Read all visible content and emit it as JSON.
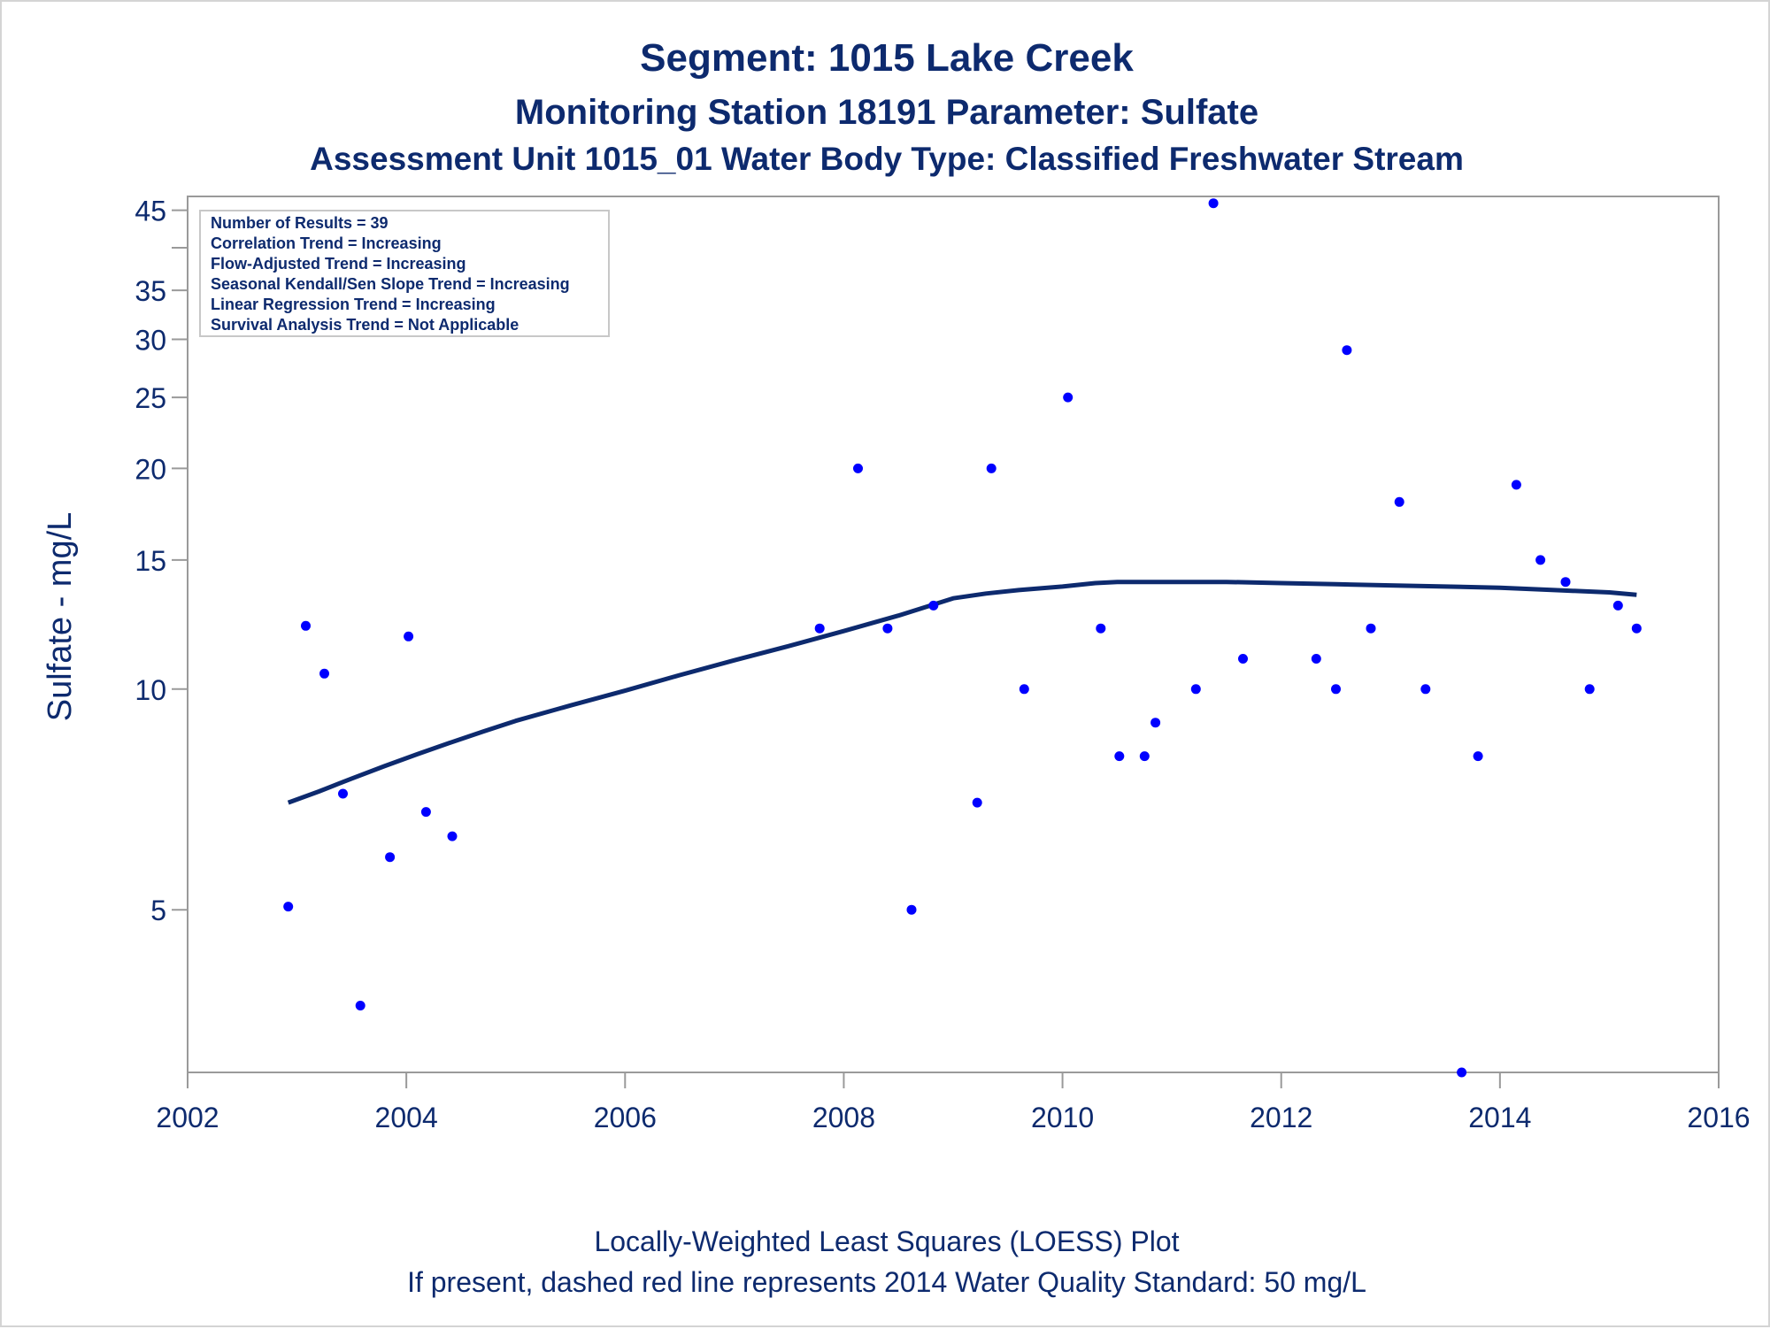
{
  "titles": {
    "line1": "Segment: 1015  Lake Creek",
    "line2": "Monitoring Station 18191 Parameter: Sulfate",
    "line3": "Assessment Unit 1015_01   Water Body Type: Classified Freshwater Stream"
  },
  "footnotes": {
    "line1": "Locally-Weighted Least Squares (LOESS) Plot",
    "line2": "If present, dashed red line represents 2014 Water Quality Standard: 50    mg/L"
  },
  "legend": [
    "Number of Results = 39",
    "Correlation Trend = Increasing",
    "Flow-Adjusted Trend = Increasing",
    "Seasonal Kendall/Sen Slope Trend = Increasing",
    "Linear Regression Trend = Increasing",
    "Survival Analysis Trend = Not Applicable"
  ],
  "colors": {
    "text": "#0d2a6e",
    "points": "#0000ff",
    "loess": "#0d2a6e",
    "axis": "#9a9a9a"
  },
  "chart_data": {
    "type": "scatter",
    "ylabel": "Sulfate - mg/L",
    "xlabel": "",
    "xlim": [
      2002,
      2016
    ],
    "ylim": [
      3.0,
      47
    ],
    "yscale": "log",
    "x_ticks": [
      2002,
      2004,
      2006,
      2008,
      2010,
      2012,
      2014,
      2016
    ],
    "y_ticks": [
      5,
      10,
      15,
      20,
      25,
      30,
      35,
      45
    ],
    "y_minor_ticks": [
      40
    ],
    "grid": false,
    "legend_position": "top-left",
    "series": [
      {
        "kind": "points",
        "x": [
          2002.92,
          2003.08,
          2003.25,
          2003.42,
          2003.58,
          2003.85,
          2004.02,
          2004.18,
          2004.42,
          2007.78,
          2008.13,
          2008.4,
          2008.62,
          2008.82,
          2009.22,
          2009.35,
          2009.65,
          2010.05,
          2010.35,
          2010.52,
          2010.75,
          2010.85,
          2011.22,
          2011.38,
          2011.65,
          2012.32,
          2012.5,
          2012.6,
          2012.82,
          2013.08,
          2013.32,
          2013.65,
          2013.8,
          2014.15,
          2014.37,
          2014.6,
          2014.82,
          2015.08,
          2015.25
        ],
        "y": [
          5.05,
          12.2,
          10.5,
          7.2,
          3.7,
          5.9,
          11.8,
          6.8,
          6.3,
          12.1,
          20,
          12.1,
          5.0,
          13,
          7.0,
          20,
          10,
          25,
          12.1,
          8.1,
          8.1,
          9.0,
          10,
          46,
          11,
          11,
          10,
          29,
          12.1,
          18,
          10,
          3.0,
          8.1,
          19,
          15,
          14,
          10,
          13,
          12.1
        ]
      },
      {
        "kind": "loess-line",
        "x": [
          2002.92,
          2003.2,
          2003.5,
          2003.8,
          2004.1,
          2004.4,
          2004.7,
          2005.0,
          2005.5,
          2006.0,
          2006.5,
          2007.0,
          2007.5,
          2008.0,
          2008.5,
          2009.0,
          2009.3,
          2009.6,
          2010.0,
          2010.3,
          2010.5,
          2011.0,
          2011.5,
          2012.0,
          2012.5,
          2013.0,
          2013.5,
          2014.0,
          2014.5,
          2015.0,
          2015.25
        ],
        "y": [
          7.0,
          7.25,
          7.55,
          7.85,
          8.15,
          8.45,
          8.75,
          9.05,
          9.5,
          9.95,
          10.45,
          10.95,
          11.45,
          12.0,
          12.6,
          13.3,
          13.5,
          13.65,
          13.8,
          13.95,
          14.0,
          14.0,
          14.0,
          13.95,
          13.9,
          13.85,
          13.8,
          13.75,
          13.65,
          13.55,
          13.45
        ]
      }
    ]
  }
}
